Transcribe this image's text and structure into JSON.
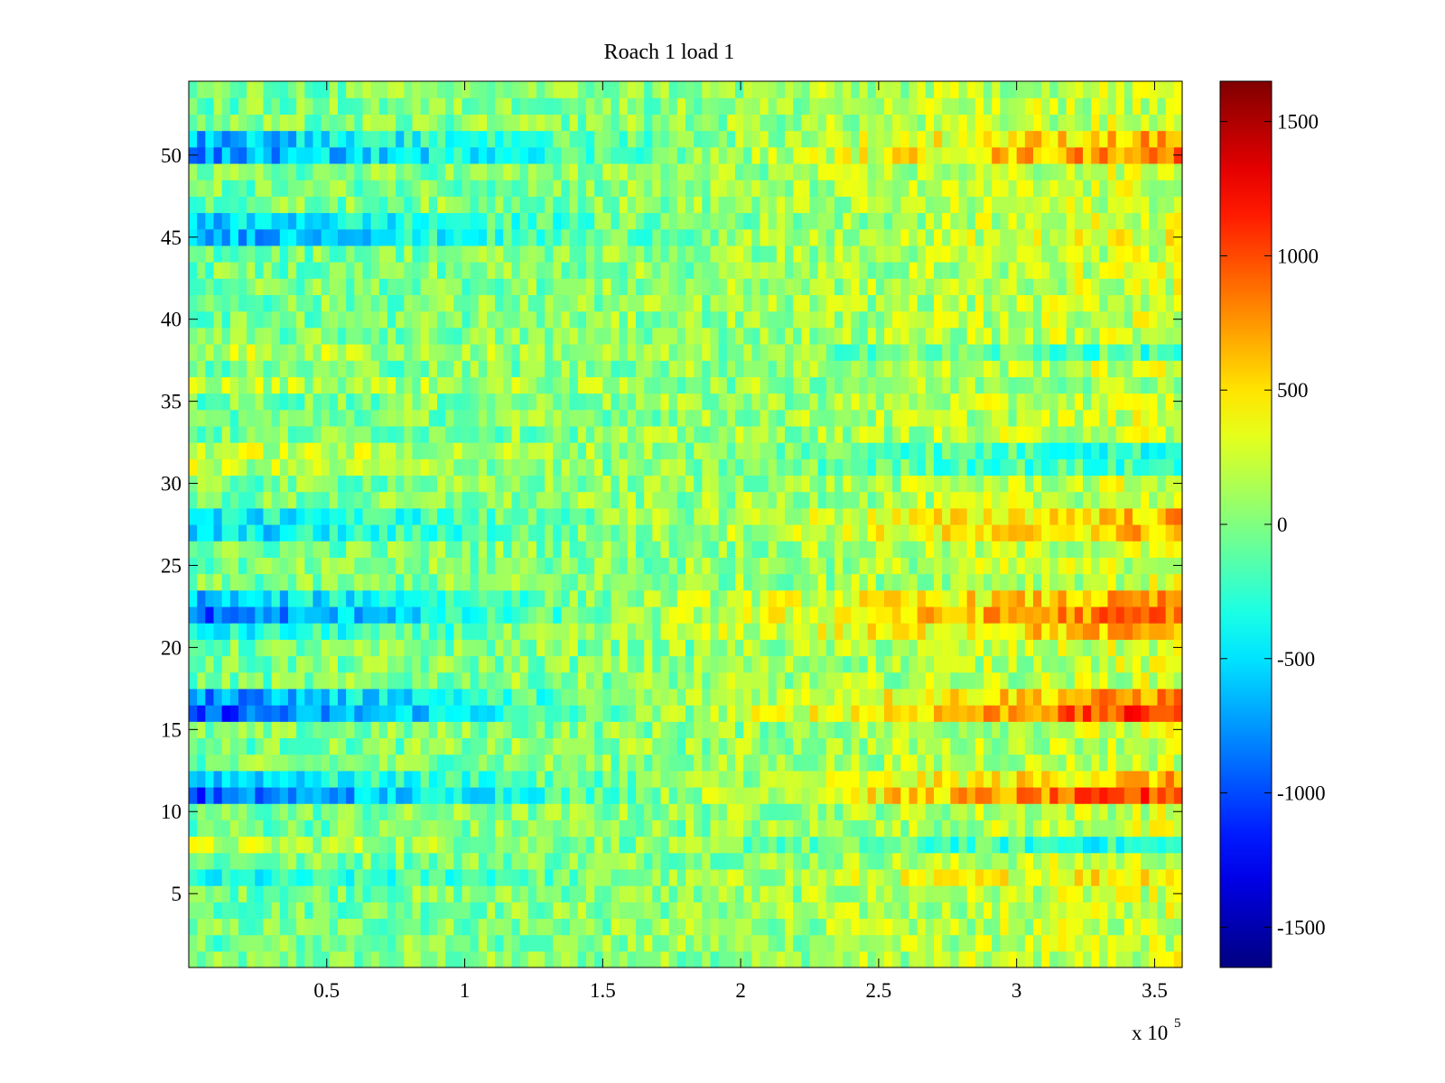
{
  "chart_data": {
    "type": "heatmap",
    "title": "Roach 1 load 1",
    "xlabel": "",
    "ylabel": "",
    "x_exponent_prefix": "x 10",
    "x_exponent_power": "5",
    "xlim": [
      0,
      3.6
    ],
    "ylim": [
      0.5,
      54.5
    ],
    "x_ticks": [
      {
        "value": 0.5,
        "label": "0.5"
      },
      {
        "value": 1,
        "label": "1"
      },
      {
        "value": 1.5,
        "label": "1.5"
      },
      {
        "value": 2,
        "label": "2"
      },
      {
        "value": 2.5,
        "label": "2.5"
      },
      {
        "value": 3,
        "label": "3"
      },
      {
        "value": 3.5,
        "label": "3.5"
      }
    ],
    "y_ticks": [
      {
        "value": 5,
        "label": "5"
      },
      {
        "value": 10,
        "label": "10"
      },
      {
        "value": 15,
        "label": "15"
      },
      {
        "value": 20,
        "label": "20"
      },
      {
        "value": 25,
        "label": "25"
      },
      {
        "value": 30,
        "label": "30"
      },
      {
        "value": 35,
        "label": "35"
      },
      {
        "value": 40,
        "label": "40"
      },
      {
        "value": 45,
        "label": "45"
      },
      {
        "value": 50,
        "label": "50"
      }
    ],
    "colorbar": {
      "colormap": "jet",
      "clim": [
        -1650,
        1650
      ],
      "ticks": [
        {
          "value": 1500,
          "label": "1500"
        },
        {
          "value": 1000,
          "label": "1000"
        },
        {
          "value": 500,
          "label": "500"
        },
        {
          "value": 0,
          "label": "0"
        },
        {
          "value": -500,
          "label": "-500"
        },
        {
          "value": -1000,
          "label": "-1000"
        },
        {
          "value": -1500,
          "label": "-1500"
        }
      ]
    },
    "rows": 54,
    "columns": 120,
    "row_trends": {
      "note": "approximate mean value of each channel at start, middle and end of the x range",
      "default": {
        "start": -50,
        "mid": 50,
        "end": 250
      },
      "special": [
        {
          "row": 50,
          "start": -800,
          "mid": 0,
          "end": 900
        },
        {
          "row": 51,
          "start": -650,
          "mid": 0,
          "end": 700
        },
        {
          "row": 45,
          "start": -700,
          "mid": 0,
          "end": 350
        },
        {
          "row": 46,
          "start": -600,
          "mid": 0,
          "end": 300
        },
        {
          "row": 22,
          "start": -950,
          "mid": 150,
          "end": 950
        },
        {
          "row": 23,
          "start": -650,
          "mid": 150,
          "end": 700
        },
        {
          "row": 21,
          "start": -450,
          "mid": 150,
          "end": 700
        },
        {
          "row": 16,
          "start": -1050,
          "mid": 100,
          "end": 1100
        },
        {
          "row": 17,
          "start": -800,
          "mid": 100,
          "end": 800
        },
        {
          "row": 11,
          "start": -1000,
          "mid": 100,
          "end": 1050
        },
        {
          "row": 12,
          "start": -550,
          "mid": 50,
          "end": 650
        },
        {
          "row": 27,
          "start": -550,
          "mid": 100,
          "end": 650
        },
        {
          "row": 28,
          "start": -500,
          "mid": 100,
          "end": 650
        },
        {
          "row": 6,
          "start": -450,
          "mid": 50,
          "end": 550
        },
        {
          "row": 32,
          "start": 250,
          "mid": 50,
          "end": -300
        },
        {
          "row": 31,
          "start": 200,
          "mid": 0,
          "end": -250
        },
        {
          "row": 8,
          "start": 200,
          "mid": 0,
          "end": -350
        },
        {
          "row": 36,
          "start": 200,
          "mid": 50,
          "end": 150
        },
        {
          "row": 38,
          "start": 200,
          "mid": 50,
          "end": -200
        }
      ]
    }
  }
}
